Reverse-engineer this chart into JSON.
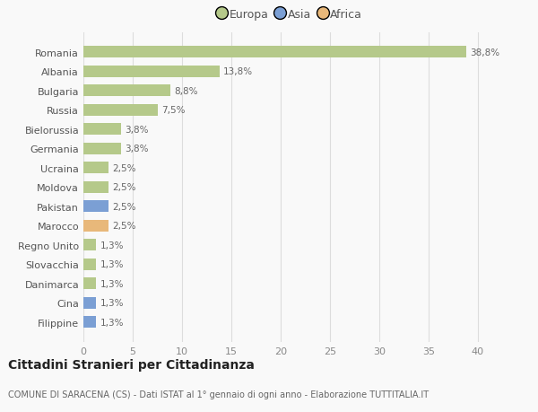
{
  "countries": [
    "Romania",
    "Albania",
    "Bulgaria",
    "Russia",
    "Bielorussia",
    "Germania",
    "Ucraina",
    "Moldova",
    "Pakistan",
    "Marocco",
    "Regno Unito",
    "Slovacchia",
    "Danimarca",
    "Cina",
    "Filippine"
  ],
  "values": [
    38.8,
    13.8,
    8.8,
    7.5,
    3.8,
    3.8,
    2.5,
    2.5,
    2.5,
    2.5,
    1.3,
    1.3,
    1.3,
    1.3,
    1.3
  ],
  "labels": [
    "38,8%",
    "13,8%",
    "8,8%",
    "7,5%",
    "3,8%",
    "3,8%",
    "2,5%",
    "2,5%",
    "2,5%",
    "2,5%",
    "1,3%",
    "1,3%",
    "1,3%",
    "1,3%",
    "1,3%"
  ],
  "continents": [
    "Europa",
    "Europa",
    "Europa",
    "Europa",
    "Europa",
    "Europa",
    "Europa",
    "Europa",
    "Asia",
    "Africa",
    "Europa",
    "Europa",
    "Europa",
    "Asia",
    "Asia"
  ],
  "colors": {
    "Europa": "#b5c98a",
    "Asia": "#7b9fd4",
    "Africa": "#e8b87a"
  },
  "xlim": [
    0,
    42
  ],
  "xticks": [
    0,
    5,
    10,
    15,
    20,
    25,
    30,
    35,
    40
  ],
  "title": "Cittadini Stranieri per Cittadinanza",
  "subtitle": "COMUNE DI SARACENA (CS) - Dati ISTAT al 1° gennaio di ogni anno - Elaborazione TUTTITALIA.IT",
  "bg_color": "#f9f9f9",
  "grid_color": "#dddddd",
  "bar_height": 0.6,
  "label_fontsize": 7.5,
  "ytick_fontsize": 8,
  "xtick_fontsize": 8,
  "title_fontsize": 10,
  "subtitle_fontsize": 7,
  "legend_fontsize": 9,
  "legend_marker_size": 10
}
